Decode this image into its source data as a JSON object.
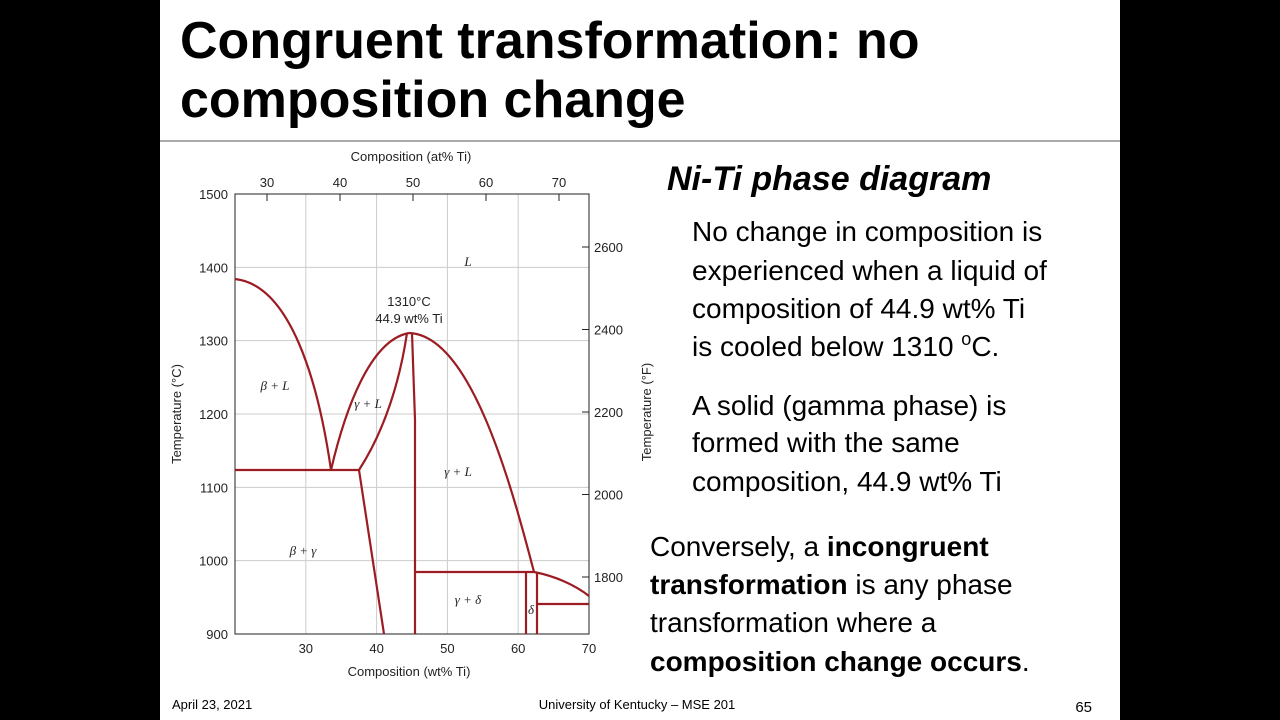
{
  "title": [
    "Congruent transformation: no",
    "composition change"
  ],
  "figure": {
    "top_axis_label": "Composition (at% Ti)",
    "top_ticks": [
      30,
      40,
      50,
      60,
      70
    ],
    "left_axis_label": "Temperature (°C)",
    "left_ticks": [
      1500,
      1400,
      1300,
      1200,
      1100,
      1000,
      900
    ],
    "right_axis_label": "Temperature (°F)",
    "right_ticks": [
      2600,
      2400,
      2200,
      2000,
      1800
    ],
    "bottom_axis_label": "Composition (wt% Ti)",
    "bottom_ticks": [
      30,
      40,
      50,
      60,
      70
    ],
    "region_labels": [
      "L",
      "β + L",
      "γ + L",
      "γ + L",
      "β + γ",
      "γ + δ",
      "δ"
    ],
    "annotation": [
      "1310°C",
      "44.9 wt% Ti"
    ]
  },
  "heading": "Ni-Ti phase diagram",
  "paragraph1": [
    "No change in composition is",
    "experienced when a liquid of",
    "composition of 44.9 wt% Ti",
    [
      "is cooled below 1310 ",
      "o",
      "C."
    ]
  ],
  "paragraph2": [
    "A solid (gamma phase) is",
    "formed with the same",
    "composition, 44.9 wt% Ti"
  ],
  "paragraph3": [
    [
      "Conversely, a ",
      "incongruent"
    ],
    [
      "transformation",
      " is any phase"
    ],
    [
      "transformation where a"
    ],
    [
      "composition change occurs",
      "."
    ]
  ],
  "footer": {
    "date": "April 23, 2021",
    "org": "University of Kentucky – MSE 201",
    "page": "65"
  }
}
